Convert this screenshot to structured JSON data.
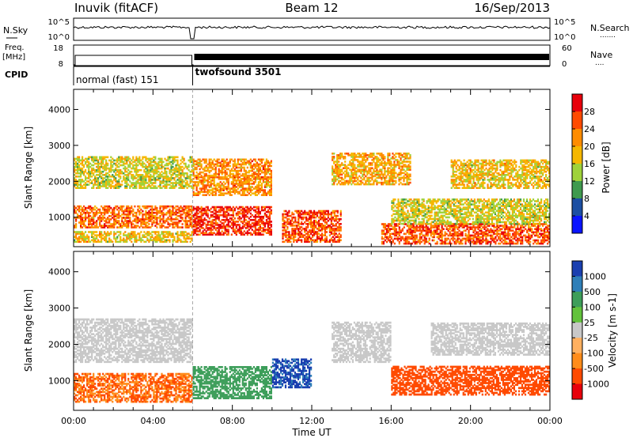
{
  "header": {
    "station": "Inuvik (fitACF)",
    "beam": "Beam 12",
    "date": "16/Sep/2013"
  },
  "status_panels": {
    "nsky": {
      "left_label": "N.Sky",
      "right_label": "N.Search",
      "left_ticks": [
        "10^5",
        "10^0"
      ],
      "right_ticks": [
        "10^5",
        "10^0"
      ],
      "right_marker": "......."
    },
    "freq": {
      "left_label_line1": "Freq.",
      "left_label_line2": "[MHz]",
      "left_ticks": [
        "18",
        "8"
      ],
      "right_label": "Nave",
      "right_ticks": [
        "60",
        "0"
      ],
      "right_marker": "...."
    },
    "cpid": {
      "label": "CPID",
      "modes": [
        {
          "name": "normal (fast) 151",
          "start_hour": 0,
          "end_hour": 6.0
        },
        {
          "name": "twofsound 3501",
          "start_hour": 6.0,
          "end_hour": 24
        }
      ]
    }
  },
  "x_axis": {
    "label": "Time UT",
    "range_hours": [
      0,
      24
    ],
    "ticks": [
      "00:00",
      "04:00",
      "08:00",
      "12:00",
      "16:00",
      "20:00",
      "00:00"
    ]
  },
  "chart_data": [
    {
      "type": "heatmap",
      "name": "power",
      "ylabel": "Slant Range [km]",
      "ylim": [
        180,
        4560
      ],
      "y_ticks": [
        1000,
        2000,
        3000,
        4000
      ],
      "colorbar": {
        "label": "Power [dB]",
        "ticks": [
          "28",
          "24",
          "20",
          "16",
          "12",
          "8",
          "4"
        ],
        "colors_top_to_bottom": [
          "#e8000b",
          "#ff4a00",
          "#ff8c00",
          "#f5b700",
          "#9fd23a",
          "#3f9a4e",
          "#1c4fa3",
          "#0a14ff"
        ]
      },
      "time_hours": [
        0,
        1,
        2,
        3,
        4,
        5,
        6,
        7,
        8,
        9,
        10,
        11,
        12,
        13,
        14,
        15,
        16,
        17,
        18,
        19,
        20,
        21,
        22,
        23,
        24
      ],
      "series": [
        {
          "name": "Power",
          "values": [
            {
              "t": [
                0,
                6
              ],
              "range": [
                700,
                1300
              ],
              "level": 24
            },
            {
              "t": [
                0,
                6
              ],
              "range": [
                1800,
                2700
              ],
              "level": 16
            },
            {
              "t": [
                0,
                6
              ],
              "range": [
                300,
                600
              ],
              "level": 18
            },
            {
              "t": [
                6,
                10
              ],
              "range": [
                500,
                1300
              ],
              "level": 28
            },
            {
              "t": [
                6,
                10
              ],
              "range": [
                1600,
                2600
              ],
              "level": 22
            },
            {
              "t": [
                10.5,
                13.5
              ],
              "range": [
                300,
                1200
              ],
              "level": 26
            },
            {
              "t": [
                13,
                17
              ],
              "range": [
                1900,
                2800
              ],
              "level": 20
            },
            {
              "t": [
                15.5,
                24
              ],
              "range": [
                250,
                800
              ],
              "level": 26
            },
            {
              "t": [
                16,
                24
              ],
              "range": [
                800,
                1500
              ],
              "level": 16
            },
            {
              "t": [
                19,
                24
              ],
              "range": [
                1800,
                2600
              ],
              "level": 18
            }
          ]
        }
      ]
    },
    {
      "type": "heatmap",
      "name": "velocity",
      "ylabel": "Slant Range [km]",
      "ylim": [
        180,
        4560
      ],
      "y_ticks": [
        1000,
        2000,
        3000,
        4000
      ],
      "colorbar": {
        "label": "Velocity [m s-1]",
        "ticks": [
          "1000",
          "500",
          "100",
          "25",
          "-25",
          "-100",
          "-500",
          "-1000"
        ],
        "colors_top_to_bottom": [
          "#1a3fb0",
          "#2f7fb8",
          "#3d9e5a",
          "#62c23c",
          "#c8c8c8",
          "#ffb060",
          "#ff8c1a",
          "#ff4a00",
          "#e8000b"
        ]
      },
      "time_hours": [
        0,
        1,
        2,
        3,
        4,
        5,
        6,
        7,
        8,
        9,
        10,
        11,
        12,
        13,
        14,
        15,
        16,
        17,
        18,
        19,
        20,
        21,
        22,
        23,
        24
      ],
      "series": [
        {
          "name": "Velocity",
          "values": [
            {
              "t": [
                0,
                6
              ],
              "range": [
                400,
                1200
              ],
              "level": -300
            },
            {
              "t": [
                0,
                6
              ],
              "range": [
                1500,
                2700
              ],
              "level": 0
            },
            {
              "t": [
                6,
                10
              ],
              "range": [
                500,
                1400
              ],
              "level": 200
            },
            {
              "t": [
                10,
                12
              ],
              "range": [
                800,
                1600
              ],
              "level": 800
            },
            {
              "t": [
                13,
                16
              ],
              "range": [
                1500,
                2600
              ],
              "level": 0
            },
            {
              "t": [
                16,
                24
              ],
              "range": [
                600,
                1400
              ],
              "level": -500
            },
            {
              "t": [
                18,
                24
              ],
              "range": [
                1700,
                2600
              ],
              "level": 0
            }
          ]
        }
      ]
    }
  ]
}
